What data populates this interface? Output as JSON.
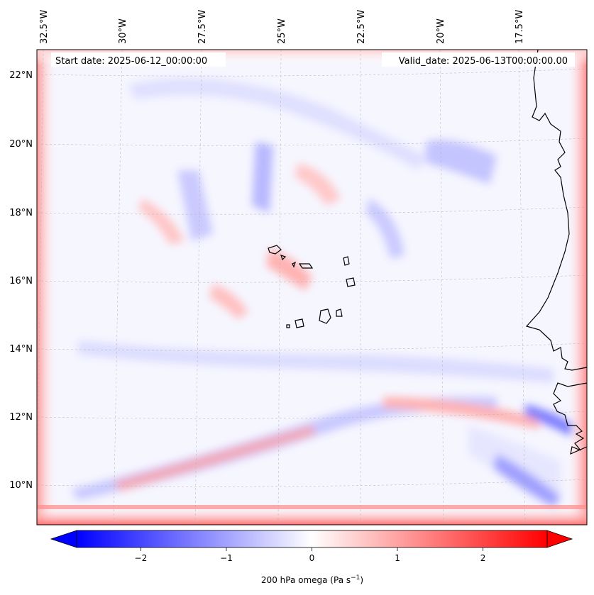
{
  "header": {
    "start_date": "Start date: 2025-06-12_00:00:00",
    "valid_date": "Valid_date: 2025-06-13T00:00:00.00"
  },
  "longitude_labels": [
    "32.5°W",
    "30°W",
    "27.5°W",
    "25°W",
    "22.5°W",
    "20°W",
    "17.5°W"
  ],
  "latitude_labels": [
    "22°N",
    "20°N",
    "18°N",
    "16°N",
    "14°N",
    "12°N",
    "10°N"
  ],
  "colorbar": {
    "label_main": "200 hPa omega (Pa s",
    "label_sup": "−1",
    "label_close": ")",
    "tick_labels": [
      "−2",
      "−1",
      "0",
      "1",
      "2"
    ],
    "tick_values": [
      -2,
      -1,
      0,
      1,
      2
    ],
    "range": [
      -2.75,
      2.75
    ],
    "colormap": "bwr",
    "extend": "both",
    "color_low": "#0000ff",
    "color_mid": "#ffffff",
    "color_high": "#ff0000"
  },
  "map": {
    "projection": "lambert-conformal",
    "field": "200 hPa omega",
    "units": "Pa s^-1",
    "features": [
      "coastline-west-africa",
      "cabo-verde-islands"
    ],
    "gridlines": true
  }
}
